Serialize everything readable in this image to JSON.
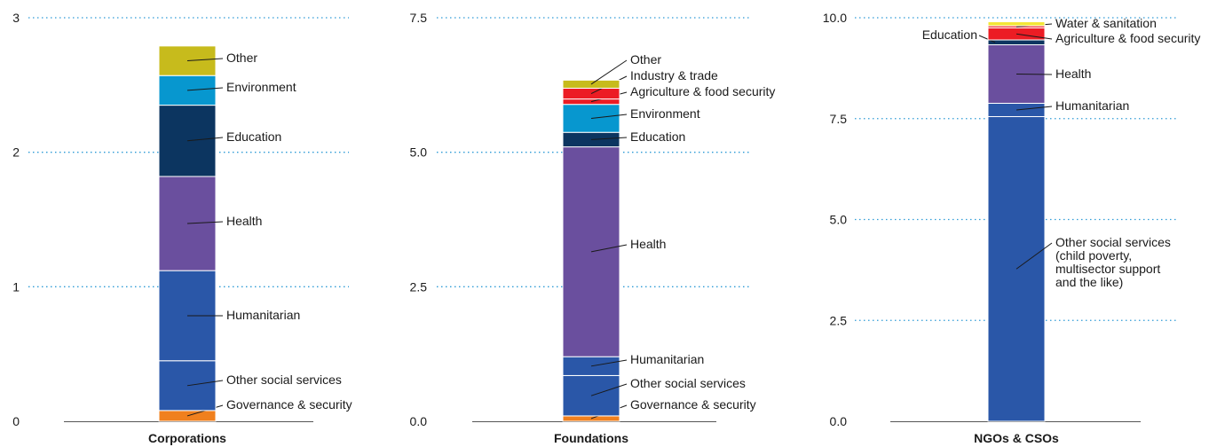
{
  "colors": {
    "Governance & security": "#f0801e",
    "Other social services": "#2a57a8",
    "Humanitarian": "#2a57a8",
    "Health": "#6a4f9e",
    "Education": "#0c3560",
    "Environment": "#0797cf",
    "Agriculture & food security": "#ec1c24",
    "Industry & trade": "#ec1c24",
    "Water & sanitation": "#ec1c24",
    "Other": "#c7bb1c",
    "Other_ngo": "#f3e735"
  },
  "chart_data": [
    {
      "type": "bar",
      "subtype": "stacked",
      "category": "Corporations",
      "yticks": [
        "0",
        "1",
        "2",
        "3"
      ],
      "ylim": [
        0,
        3
      ],
      "grid": true,
      "segments": [
        {
          "name": "Governance & security",
          "value": 0.08,
          "label": "Governance & security"
        },
        {
          "name": "Other social services",
          "value": 0.37,
          "label": "Other social services"
        },
        {
          "name": "Humanitarian",
          "value": 0.67,
          "label": "Humanitarian"
        },
        {
          "name": "Health",
          "value": 0.7,
          "label": "Health"
        },
        {
          "name": "Education",
          "value": 0.53,
          "label": "Education"
        },
        {
          "name": "Environment",
          "value": 0.22,
          "label": "Environment"
        },
        {
          "name": "Other",
          "value": 0.22,
          "label": "Other"
        }
      ]
    },
    {
      "type": "bar",
      "subtype": "stacked",
      "category": "Foundations",
      "yticks": [
        "0.0",
        "2.5",
        "5.0",
        "7.5"
      ],
      "ylim": [
        0,
        7.5
      ],
      "grid": true,
      "segments": [
        {
          "name": "Governance & security",
          "value": 0.1,
          "label": "Governance & security"
        },
        {
          "name": "Other social services",
          "value": 0.75,
          "label": "Other social services"
        },
        {
          "name": "Humanitarian",
          "value": 0.35,
          "label": "Humanitarian"
        },
        {
          "name": "Health",
          "value": 3.9,
          "label": "Health"
        },
        {
          "name": "Education",
          "value": 0.27,
          "label": "Education"
        },
        {
          "name": "Environment",
          "value": 0.52,
          "label": "Environment"
        },
        {
          "name": "Agriculture & food security",
          "value": 0.1,
          "label": "Agriculture & food security"
        },
        {
          "name": "Industry & trade",
          "value": 0.2,
          "label": "Industry & trade"
        },
        {
          "name": "Other",
          "value": 0.15,
          "label": "Other"
        }
      ]
    },
    {
      "type": "bar",
      "subtype": "stacked",
      "category": "NGOs & CSOs",
      "yticks": [
        "0.0",
        "2.5",
        "5.0",
        "7.5",
        "10.0"
      ],
      "ylim": [
        0,
        10
      ],
      "grid": true,
      "segments": [
        {
          "name": "Other social services",
          "value": 7.55,
          "label": "Other social services\n(child poverty,\nmultisector support\nand the like)"
        },
        {
          "name": "Humanitarian",
          "value": 0.33,
          "label": "Humanitarian"
        },
        {
          "name": "Health",
          "value": 1.45,
          "label": "Health"
        },
        {
          "name": "Education",
          "value": 0.12,
          "label": "Education"
        },
        {
          "name": "Agriculture & food security",
          "value": 0.3,
          "label": "Agriculture & food security"
        },
        {
          "name": "Water & sanitation",
          "value": 0.05,
          "label": "Water & sanitation"
        },
        {
          "name": "Other_ngo",
          "value": 0.1,
          "label": ""
        }
      ]
    }
  ]
}
